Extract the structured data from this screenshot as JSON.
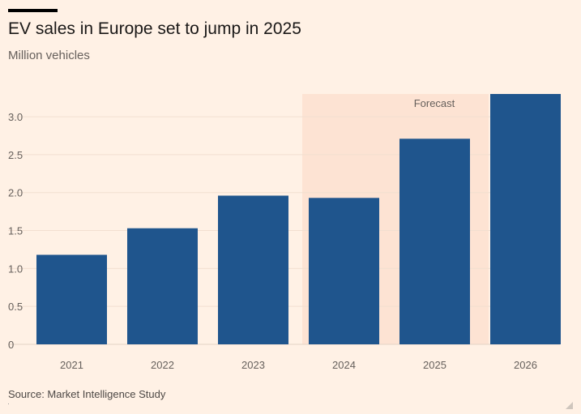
{
  "header": {
    "title": "EV sales in Europe set to jump in 2025",
    "subtitle": "Million vehicles"
  },
  "footer": {
    "source": "Source: Market Intelligence Study"
  },
  "colors": {
    "background": "#fff1e5",
    "bar": "#1f558d",
    "forecast_band": "#fde3d3",
    "gridline": "#f2dfd0",
    "text": "#66605c"
  },
  "chart_data": {
    "type": "bar",
    "title": "EV sales in Europe set to jump in 2025",
    "subtitle": "Million vehicles",
    "xlabel": "",
    "ylabel": "Million vehicles",
    "categories": [
      "2021",
      "2022",
      "2023",
      "2024",
      "2025",
      "2026"
    ],
    "values": [
      1.18,
      1.53,
      1.96,
      1.93,
      2.71,
      3.31
    ],
    "ylim": [
      0,
      3.3
    ],
    "yticks": [
      0,
      0.5,
      1.0,
      1.5,
      2.0,
      2.5,
      3.0
    ],
    "ytick_labels": [
      "0",
      "0.5",
      "1.0",
      "1.5",
      "2.0",
      "2.5",
      "3.0"
    ],
    "grid": true,
    "forecast": {
      "label": "Forecast",
      "categories": [
        "2024",
        "2025"
      ]
    }
  }
}
